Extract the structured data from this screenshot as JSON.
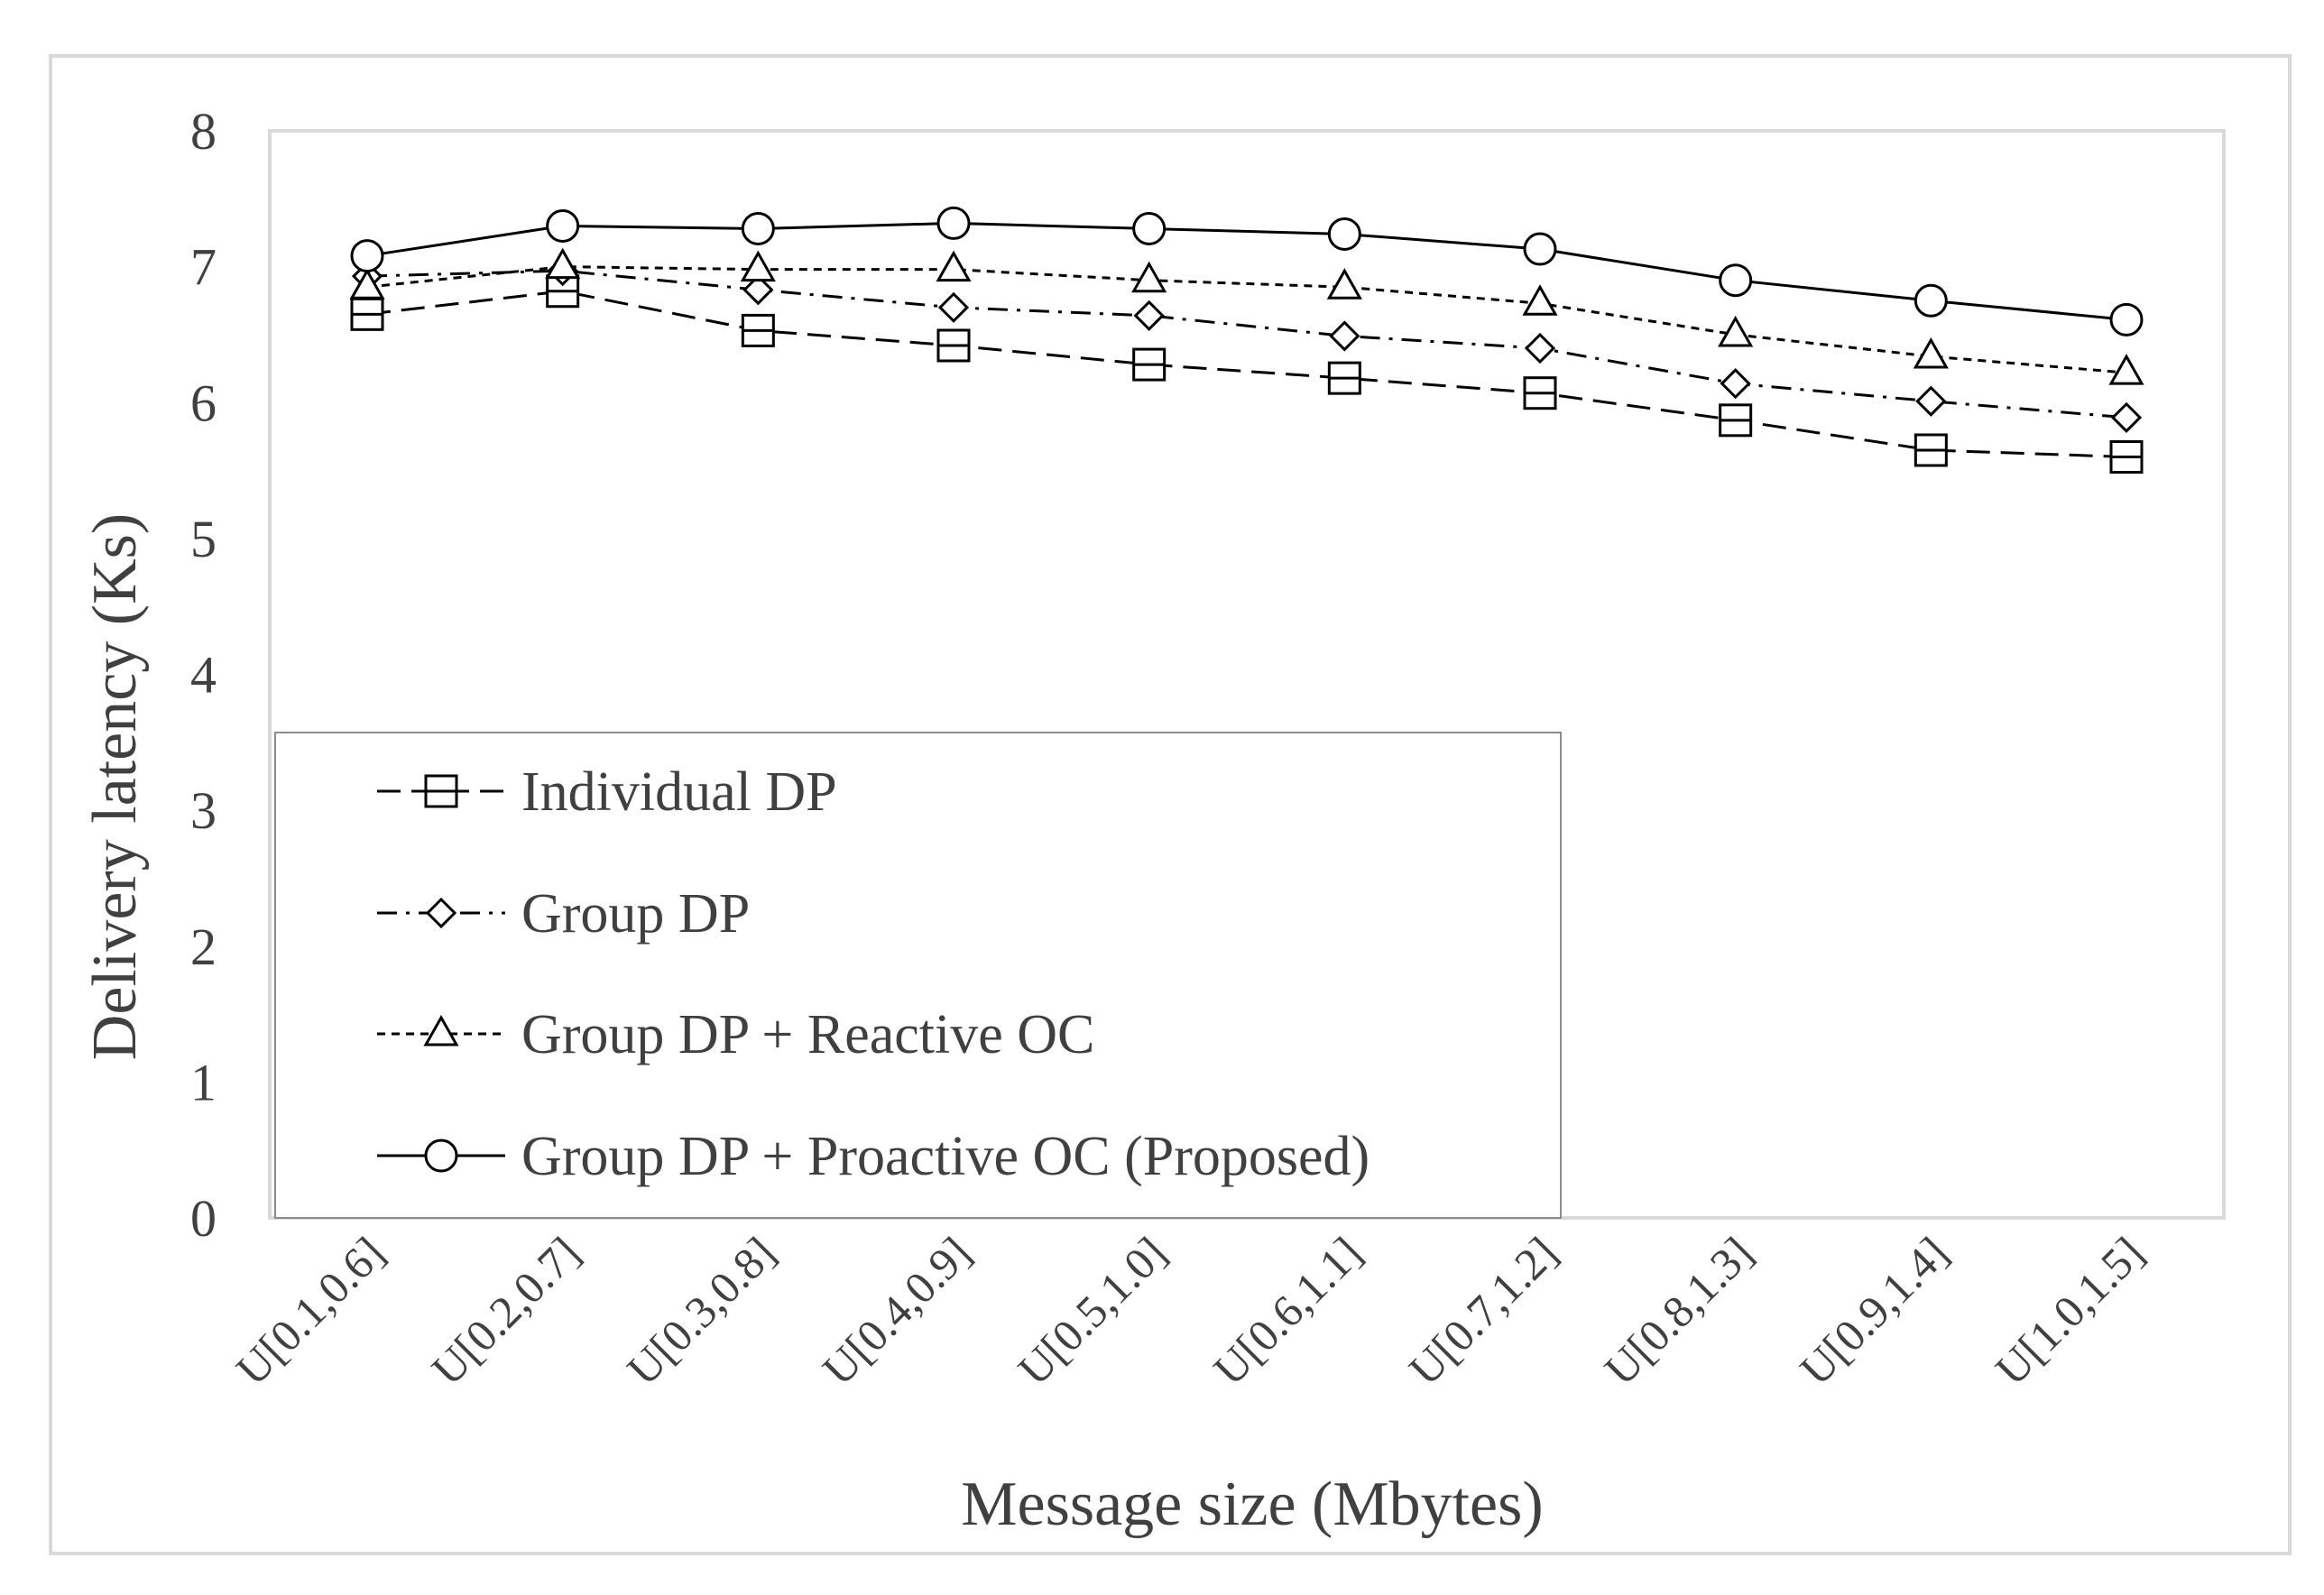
{
  "chart_data": {
    "type": "line",
    "title": "",
    "xlabel": "Message size (Mbytes)",
    "ylabel": "Delivery latency (Ks)",
    "ylim": [
      0,
      8
    ],
    "yticks": [
      0,
      1,
      2,
      3,
      4,
      5,
      6,
      7,
      8
    ],
    "grid": false,
    "legend_position": "bottom-left",
    "categories": [
      "U[0.1,0.6]",
      "U[0.2,0.7]",
      "U[0.3,0.8]",
      "U[0.4,0.9]",
      "U[0.5,1.0]",
      "U[0.6,1.1]",
      "U[0.7,1.2]",
      "U[0.8,1.3]",
      "U[0.9,1.4]",
      "U[1.0,1.5]"
    ],
    "series": [
      {
        "name": "Individual DP",
        "marker": "square",
        "dash": "long-dash",
        "values": [
          6.65,
          6.82,
          6.53,
          6.42,
          6.28,
          6.18,
          6.07,
          5.87,
          5.65,
          5.6
        ]
      },
      {
        "name": "Group DP",
        "marker": "diamond",
        "dash": "dash-dot",
        "values": [
          6.93,
          6.97,
          6.83,
          6.7,
          6.64,
          6.49,
          6.4,
          6.14,
          6.01,
          5.89
        ]
      },
      {
        "name": "Group DP + Reactive OC",
        "marker": "triangle",
        "dash": "short-dash",
        "values": [
          6.85,
          7.0,
          6.98,
          6.98,
          6.9,
          6.85,
          6.73,
          6.5,
          6.34,
          6.22
        ]
      },
      {
        "name": "Group DP + Proactive OC (Proposed)",
        "marker": "circle",
        "dash": "solid",
        "values": [
          7.08,
          7.3,
          7.28,
          7.32,
          7.28,
          7.24,
          7.13,
          6.9,
          6.75,
          6.61
        ]
      }
    ],
    "colors": {
      "line": "#000000",
      "text": "#404040",
      "frame": "#d9d9d9"
    }
  }
}
